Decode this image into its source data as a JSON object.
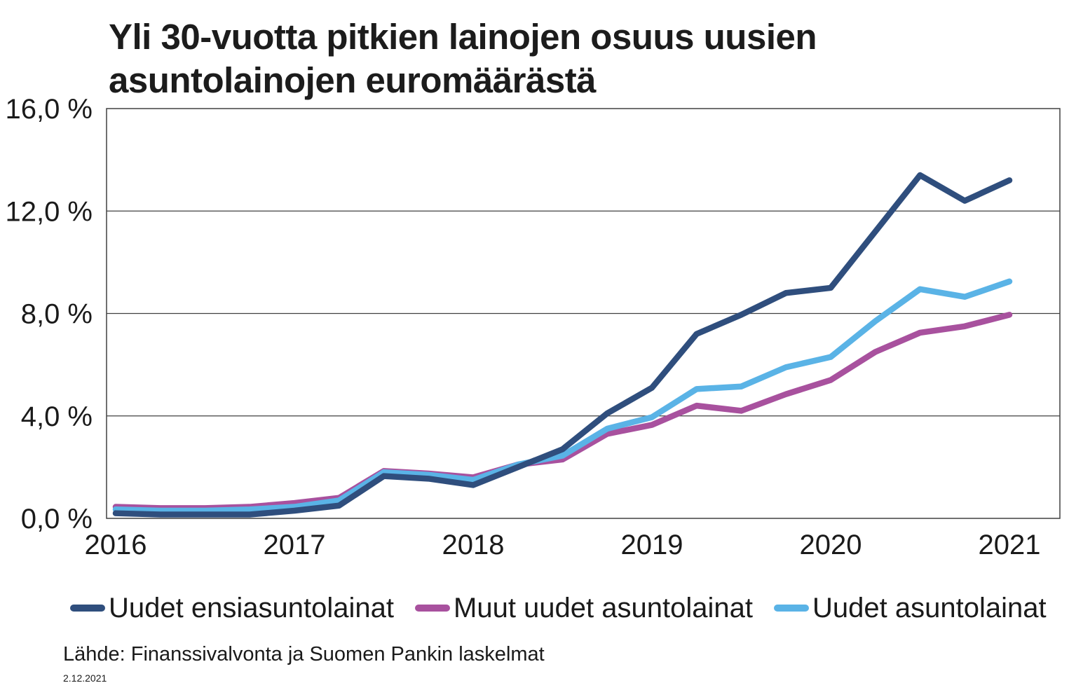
{
  "title": {
    "line1": "Yli 30-vuotta pitkien lainojen osuus uusien",
    "line2": "asuntolainojen euromäärästä"
  },
  "footer": {
    "source": "Lähde: Finanssivalvonta ja Suomen Pankin laskelmat",
    "date": "2.12.2021"
  },
  "chart_data": {
    "type": "line",
    "title": "Yli 30-vuotta pitkien lainojen osuus uusien asuntolainojen euromäärästä",
    "x_unit": "quarter",
    "x": [
      "2016Q1",
      "2016Q2",
      "2016Q3",
      "2016Q4",
      "2017Q1",
      "2017Q2",
      "2017Q3",
      "2017Q4",
      "2018Q1",
      "2018Q2",
      "2018Q3",
      "2018Q4",
      "2019Q1",
      "2019Q2",
      "2019Q3",
      "2019Q4",
      "2020Q1",
      "2020Q2",
      "2020Q3",
      "2020Q4",
      "2021Q1"
    ],
    "series": [
      {
        "name": "Uudet ensiasuntolainat",
        "color": "#2F4E7D",
        "values": [
          0.2,
          0.15,
          0.15,
          0.15,
          0.3,
          0.5,
          1.65,
          1.55,
          1.3,
          2.0,
          2.7,
          4.1,
          5.1,
          7.2,
          7.95,
          8.8,
          9.0,
          11.2,
          13.4,
          12.4,
          13.2
        ]
      },
      {
        "name": "Muut uudet asuntolainat",
        "color": "#A8519E",
        "values": [
          0.45,
          0.4,
          0.4,
          0.45,
          0.6,
          0.8,
          1.85,
          1.75,
          1.6,
          2.1,
          2.3,
          3.3,
          3.65,
          4.4,
          4.2,
          4.85,
          5.4,
          6.5,
          7.25,
          7.5,
          7.95
        ]
      },
      {
        "name": "Uudet asuntolainat",
        "color": "#5AB3E6",
        "values": [
          0.35,
          0.3,
          0.3,
          0.35,
          0.45,
          0.7,
          1.8,
          1.7,
          1.5,
          2.1,
          2.45,
          3.5,
          3.95,
          5.05,
          5.15,
          5.9,
          6.3,
          7.7,
          8.95,
          8.65,
          9.25
        ]
      }
    ],
    "y_ticks": [
      {
        "value": 0,
        "label": "0,0 %"
      },
      {
        "value": 4,
        "label": "4,0 %"
      },
      {
        "value": 8,
        "label": "8,0 %"
      },
      {
        "value": 12,
        "label": "12,0 %"
      },
      {
        "value": 16,
        "label": "16,0 %"
      }
    ],
    "x_ticks": [
      {
        "quarter_index": 0,
        "label": "2016"
      },
      {
        "quarter_index": 4,
        "label": "2017"
      },
      {
        "quarter_index": 8,
        "label": "2018"
      },
      {
        "quarter_index": 12,
        "label": "2019"
      },
      {
        "quarter_index": 16,
        "label": "2020"
      },
      {
        "quarter_index": 20,
        "label": "2021"
      }
    ],
    "ylim": [
      0,
      16
    ],
    "gridline_values": [
      4,
      8,
      12
    ],
    "grid": "horizontal",
    "legend_position": "bottom",
    "draw_order": [
      1,
      2,
      0
    ]
  }
}
